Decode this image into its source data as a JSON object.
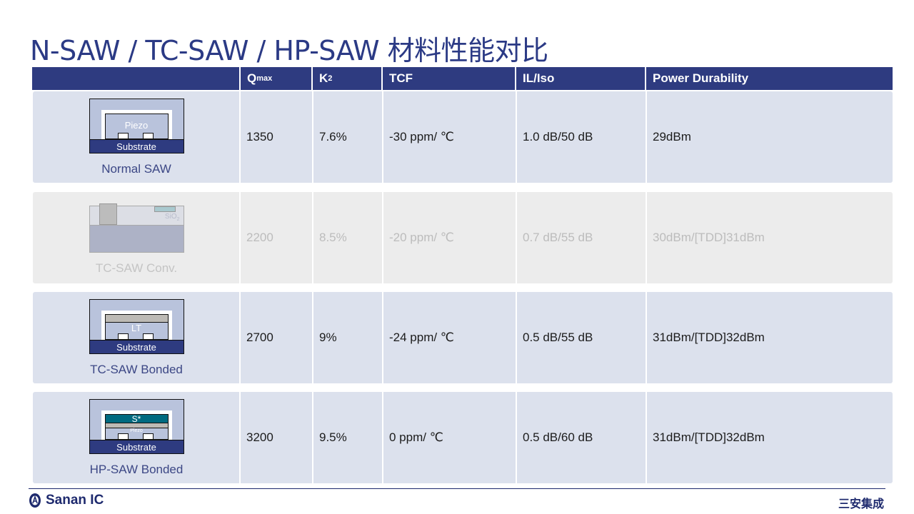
{
  "title": "N-SAW / TC-SAW / HP-SAW 材料性能对比",
  "header": {
    "q": "Q",
    "q_sub": "max",
    "k": "K",
    "k_sup": "2",
    "tcf": "TCF",
    "il": "IL/Iso",
    "power": "Power Durability"
  },
  "rows": [
    {
      "name": "Normal SAW",
      "layer": "Piezo",
      "substrate": "Substrate",
      "q": "1350",
      "k2": "7.6%",
      "tcf": "-30 ppm/ ℃",
      "il": "1.0 dB/50 dB",
      "power": "29dBm"
    },
    {
      "name": "TC-SAW Conv.",
      "layer": "SiO",
      "layer_sub": "2",
      "q": "2200",
      "k2": "8.5%",
      "tcf": "-20 ppm/ ℃",
      "il": "0.7 dB/55 dB",
      "power": "30dBm/[TDD]31dBm"
    },
    {
      "name": "TC-SAW Bonded",
      "layer": "LT",
      "substrate": "Substrate",
      "q": "2700",
      "k2": "9%",
      "tcf": "-24 ppm/ ℃",
      "il": "0.5 dB/55 dB",
      "power": "31dBm/[TDD]32dBm"
    },
    {
      "name": "HP-SAW Bonded",
      "layer": "S*",
      "layer2": "Piezo",
      "substrate": "Substrate",
      "q": "3200",
      "k2": "9.5%",
      "tcf": "0 ppm/ ℃",
      "il": "0.5 dB/60 dB",
      "power": "31dBm/[TDD]32dBm"
    }
  ],
  "footer": {
    "brand": "Sanan IC",
    "brand_cn": "三安集成"
  },
  "colors": {
    "header": "#2e3b80",
    "row": "#dce1ed",
    "disabled_row": "#ececec",
    "title": "#2b3a85"
  }
}
